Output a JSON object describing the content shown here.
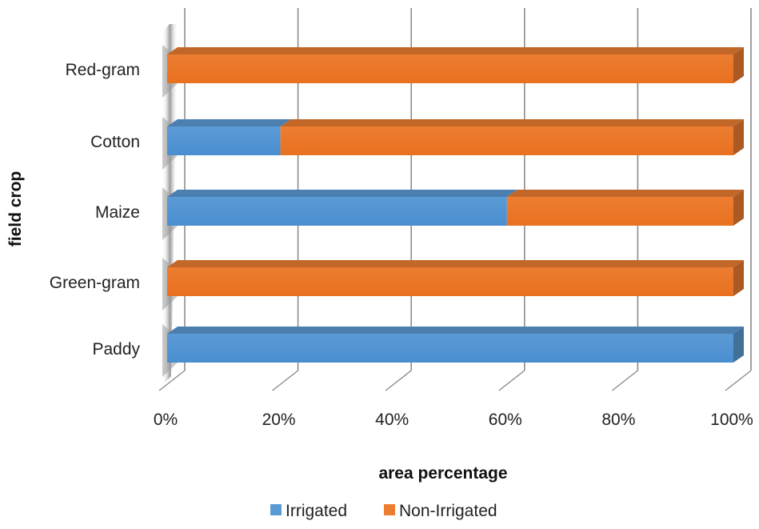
{
  "chart_data": {
    "type": "bar",
    "orientation": "horizontal",
    "stacked": "percent",
    "style": "3d",
    "categories": [
      "Paddy",
      "Green-gram",
      "Maize",
      "Cotton",
      "Red-gram"
    ],
    "series": [
      {
        "name": "Irrigated",
        "values": [
          100,
          0,
          60,
          20,
          0
        ]
      },
      {
        "name": "Non-Irrigated",
        "values": [
          0,
          100,
          40,
          80,
          100
        ]
      }
    ],
    "xlabel": "area percentage",
    "ylabel": "field crop",
    "xlim": [
      0,
      100
    ],
    "x_ticks": [
      "0%",
      "20%",
      "40%",
      "60%",
      "80%",
      "100%"
    ],
    "grid": true,
    "legend_position": "bottom",
    "colors": {
      "Irrigated": "#5b9bd5",
      "Non-Irrigated": "#ed7d31"
    }
  }
}
